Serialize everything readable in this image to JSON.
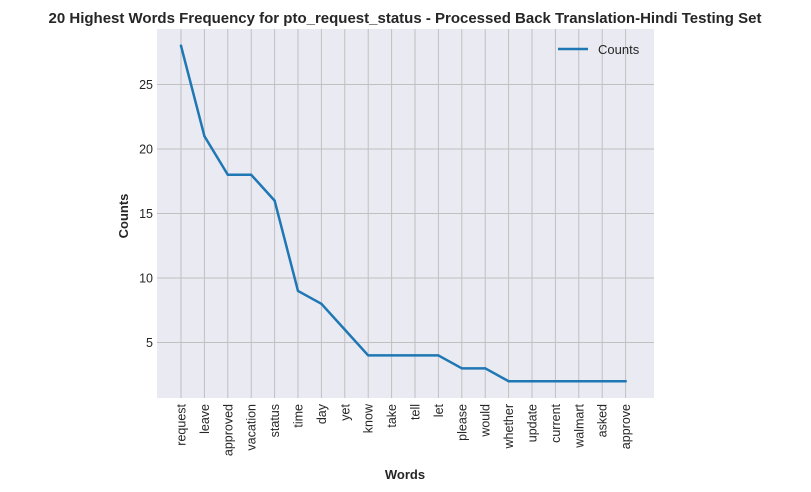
{
  "chart_data": {
    "type": "line",
    "title": "20 Highest Words Frequency for pto_request_status - Processed Back Translation-Hindi Testing Set",
    "xlabel": "Words",
    "ylabel": "Counts",
    "categories": [
      "request",
      "leave",
      "approved",
      "vacation",
      "status",
      "time",
      "day",
      "yet",
      "know",
      "take",
      "tell",
      "let",
      "please",
      "would",
      "whether",
      "update",
      "current",
      "walmart",
      "asked",
      "approve"
    ],
    "series": [
      {
        "name": "Counts",
        "values": [
          28,
          21,
          18,
          18,
          16,
          9,
          8,
          6,
          4,
          4,
          4,
          4,
          3,
          3,
          2,
          2,
          2,
          2,
          2,
          2
        ]
      }
    ],
    "yticks": [
      5,
      10,
      15,
      20,
      25
    ],
    "ylim": [
      0.7,
      29.3
    ],
    "grid": true,
    "legend_position": "top-right",
    "colors": {
      "line": "#1f77b4",
      "plot_background": "#eaeaf2",
      "grid": "#c0c0c0"
    }
  }
}
